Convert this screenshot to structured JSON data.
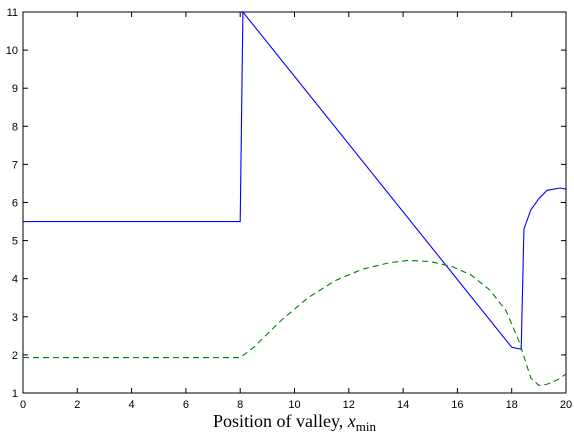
{
  "chart_data": {
    "type": "line",
    "title": "",
    "xlabel": {
      "main": "Position of valley, ",
      "var": "x",
      "sub": "min"
    },
    "ylabel": "",
    "xlim": [
      0,
      20
    ],
    "ylim": [
      1,
      11
    ],
    "xticks": [
      0,
      2,
      4,
      6,
      8,
      10,
      12,
      14,
      16,
      18,
      20
    ],
    "yticks": [
      1,
      2,
      3,
      4,
      5,
      6,
      7,
      8,
      9,
      10,
      11
    ],
    "grid": false,
    "legend": "none",
    "series": [
      {
        "style": "solid",
        "color": "#0000ff",
        "points": [
          [
            0,
            5.5
          ],
          [
            8.0,
            5.5
          ],
          [
            8.1,
            11.0
          ],
          [
            18.0,
            2.2
          ],
          [
            18.35,
            2.15
          ],
          [
            18.45,
            5.3
          ],
          [
            18.7,
            5.8
          ],
          [
            19.0,
            6.1
          ],
          [
            19.3,
            6.32
          ],
          [
            19.8,
            6.38
          ],
          [
            20.0,
            6.35
          ]
        ]
      },
      {
        "style": "dashed",
        "color": "#008000",
        "points": [
          [
            0,
            1.93
          ],
          [
            8.0,
            1.93
          ],
          [
            8.5,
            2.2
          ],
          [
            9.5,
            2.9
          ],
          [
            10.5,
            3.5
          ],
          [
            11.5,
            3.95
          ],
          [
            12.5,
            4.25
          ],
          [
            13.5,
            4.42
          ],
          [
            14.2,
            4.48
          ],
          [
            15.0,
            4.45
          ],
          [
            15.8,
            4.32
          ],
          [
            16.5,
            4.1
          ],
          [
            17.2,
            3.7
          ],
          [
            17.8,
            3.15
          ],
          [
            18.3,
            2.3
          ],
          [
            18.7,
            1.4
          ],
          [
            19.0,
            1.2
          ],
          [
            19.3,
            1.23
          ],
          [
            19.7,
            1.35
          ],
          [
            20.0,
            1.5
          ]
        ]
      }
    ]
  }
}
